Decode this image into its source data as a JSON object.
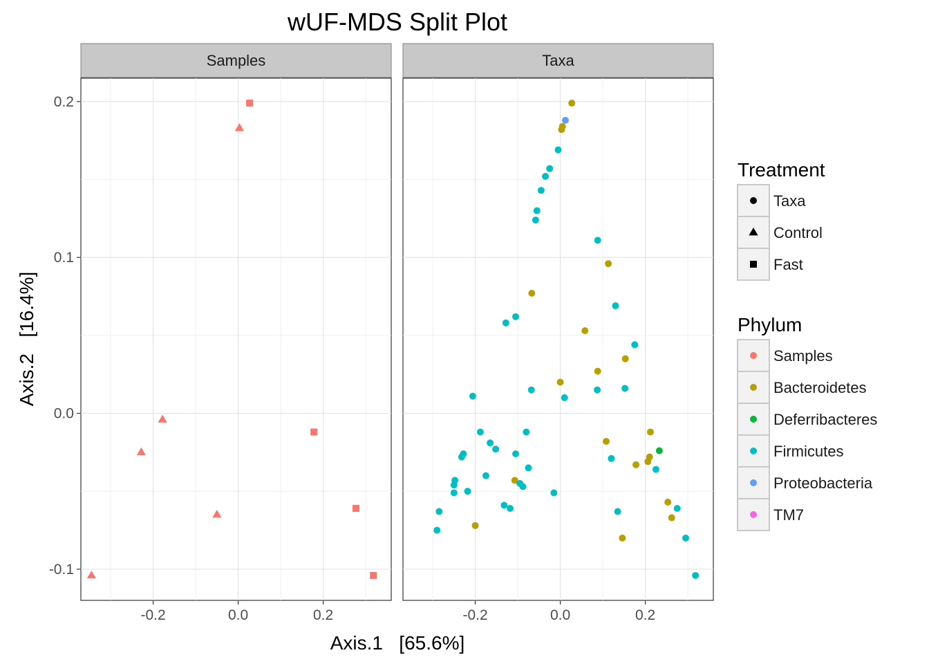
{
  "chart_data": {
    "type": "scatter",
    "title": "wUF-MDS Split Plot",
    "xlabel": "Axis.1   [65.6%]",
    "ylabel": "Axis.2   [16.4%]",
    "xlim": [
      -0.37,
      0.36
    ],
    "ylim": [
      -0.12,
      0.215
    ],
    "x_ticks": [
      -0.2,
      0.0,
      0.2
    ],
    "x_tick_labels": [
      "-0.2",
      "0.0",
      "0.2"
    ],
    "y_ticks": [
      -0.1,
      0.0,
      0.1,
      0.2
    ],
    "y_tick_labels": [
      "-0.1",
      "0.0",
      "0.1",
      "0.2"
    ],
    "grid": true,
    "facets": [
      "Samples",
      "Taxa"
    ],
    "legend_position": "right",
    "legends": [
      {
        "title": "Treatment",
        "items": [
          {
            "label": "Taxa",
            "shape": "circle"
          },
          {
            "label": "Control",
            "shape": "triangle"
          },
          {
            "label": "Fast",
            "shape": "square"
          }
        ]
      },
      {
        "title": "Phylum",
        "items": [
          {
            "label": "Samples",
            "color": "#F8766D"
          },
          {
            "label": "Bacteroidetes",
            "color": "#B79F00"
          },
          {
            "label": "Deferribacteres",
            "color": "#00BA38"
          },
          {
            "label": "Firmicutes",
            "color": "#00BFC4"
          },
          {
            "label": "Proteobacteria",
            "color": "#619CFF"
          },
          {
            "label": "TM7",
            "color": "#F564E3"
          }
        ]
      }
    ],
    "series": [
      {
        "facet": "Samples",
        "phylum": "Samples",
        "treatment": "Control",
        "points": [
          [
            0.003,
            0.183
          ],
          [
            -0.178,
            -0.004
          ],
          [
            -0.228,
            -0.025
          ],
          [
            -0.05,
            -0.065
          ],
          [
            -0.345,
            -0.104
          ]
        ]
      },
      {
        "facet": "Samples",
        "phylum": "Samples",
        "treatment": "Fast",
        "points": [
          [
            0.027,
            0.199
          ],
          [
            0.178,
            -0.012
          ],
          [
            0.277,
            -0.061
          ],
          [
            0.318,
            -0.104
          ]
        ]
      },
      {
        "facet": "Taxa",
        "phylum": "Bacteroidetes",
        "treatment": "Taxa",
        "points": [
          [
            0.027,
            0.199
          ],
          [
            0.005,
            0.184
          ],
          [
            0.003,
            0.182
          ],
          [
            0.113,
            0.096
          ],
          [
            -0.067,
            0.077
          ],
          [
            0.058,
            0.053
          ],
          [
            0.153,
            0.035
          ],
          [
            0.088,
            0.027
          ],
          [
            0.0,
            0.02
          ],
          [
            0.212,
            -0.012
          ],
          [
            0.108,
            -0.018
          ],
          [
            0.21,
            -0.028
          ],
          [
            0.206,
            -0.031
          ],
          [
            0.178,
            -0.033
          ],
          [
            -0.107,
            -0.043
          ],
          [
            0.253,
            -0.057
          ],
          [
            0.262,
            -0.067
          ],
          [
            -0.2,
            -0.072
          ],
          [
            0.146,
            -0.08
          ]
        ]
      },
      {
        "facet": "Taxa",
        "phylum": "Deferribacteres",
        "treatment": "Taxa",
        "points": [
          [
            0.233,
            -0.024
          ]
        ]
      },
      {
        "facet": "Taxa",
        "phylum": "Firmicutes",
        "treatment": "Taxa",
        "points": [
          [
            -0.005,
            0.169
          ],
          [
            -0.025,
            0.157
          ],
          [
            -0.035,
            0.152
          ],
          [
            -0.045,
            0.143
          ],
          [
            -0.055,
            0.13
          ],
          [
            -0.058,
            0.124
          ],
          [
            0.088,
            0.111
          ],
          [
            0.13,
            0.069
          ],
          [
            -0.105,
            0.062
          ],
          [
            -0.128,
            0.058
          ],
          [
            0.175,
            0.044
          ],
          [
            -0.068,
            0.015
          ],
          [
            0.087,
            0.015
          ],
          [
            0.152,
            0.016
          ],
          [
            0.01,
            0.01
          ],
          [
            -0.206,
            0.011
          ],
          [
            -0.188,
            -0.012
          ],
          [
            -0.08,
            -0.012
          ],
          [
            -0.165,
            -0.019
          ],
          [
            -0.152,
            -0.023
          ],
          [
            -0.105,
            -0.026
          ],
          [
            -0.228,
            -0.026
          ],
          [
            -0.232,
            -0.028
          ],
          [
            0.12,
            -0.029
          ],
          [
            -0.075,
            -0.035
          ],
          [
            0.225,
            -0.036
          ],
          [
            -0.175,
            -0.04
          ],
          [
            -0.248,
            -0.043
          ],
          [
            -0.095,
            -0.045
          ],
          [
            -0.088,
            -0.047
          ],
          [
            -0.25,
            -0.046
          ],
          [
            -0.218,
            -0.05
          ],
          [
            -0.25,
            -0.051
          ],
          [
            -0.015,
            -0.051
          ],
          [
            -0.132,
            -0.059
          ],
          [
            -0.118,
            -0.061
          ],
          [
            -0.285,
            -0.063
          ],
          [
            0.275,
            -0.061
          ],
          [
            0.135,
            -0.063
          ],
          [
            -0.29,
            -0.075
          ],
          [
            0.295,
            -0.08
          ],
          [
            0.318,
            -0.104
          ]
        ]
      },
      {
        "facet": "Taxa",
        "phylum": "Proteobacteria",
        "treatment": "Taxa",
        "points": [
          [
            0.012,
            0.188
          ]
        ]
      }
    ]
  }
}
